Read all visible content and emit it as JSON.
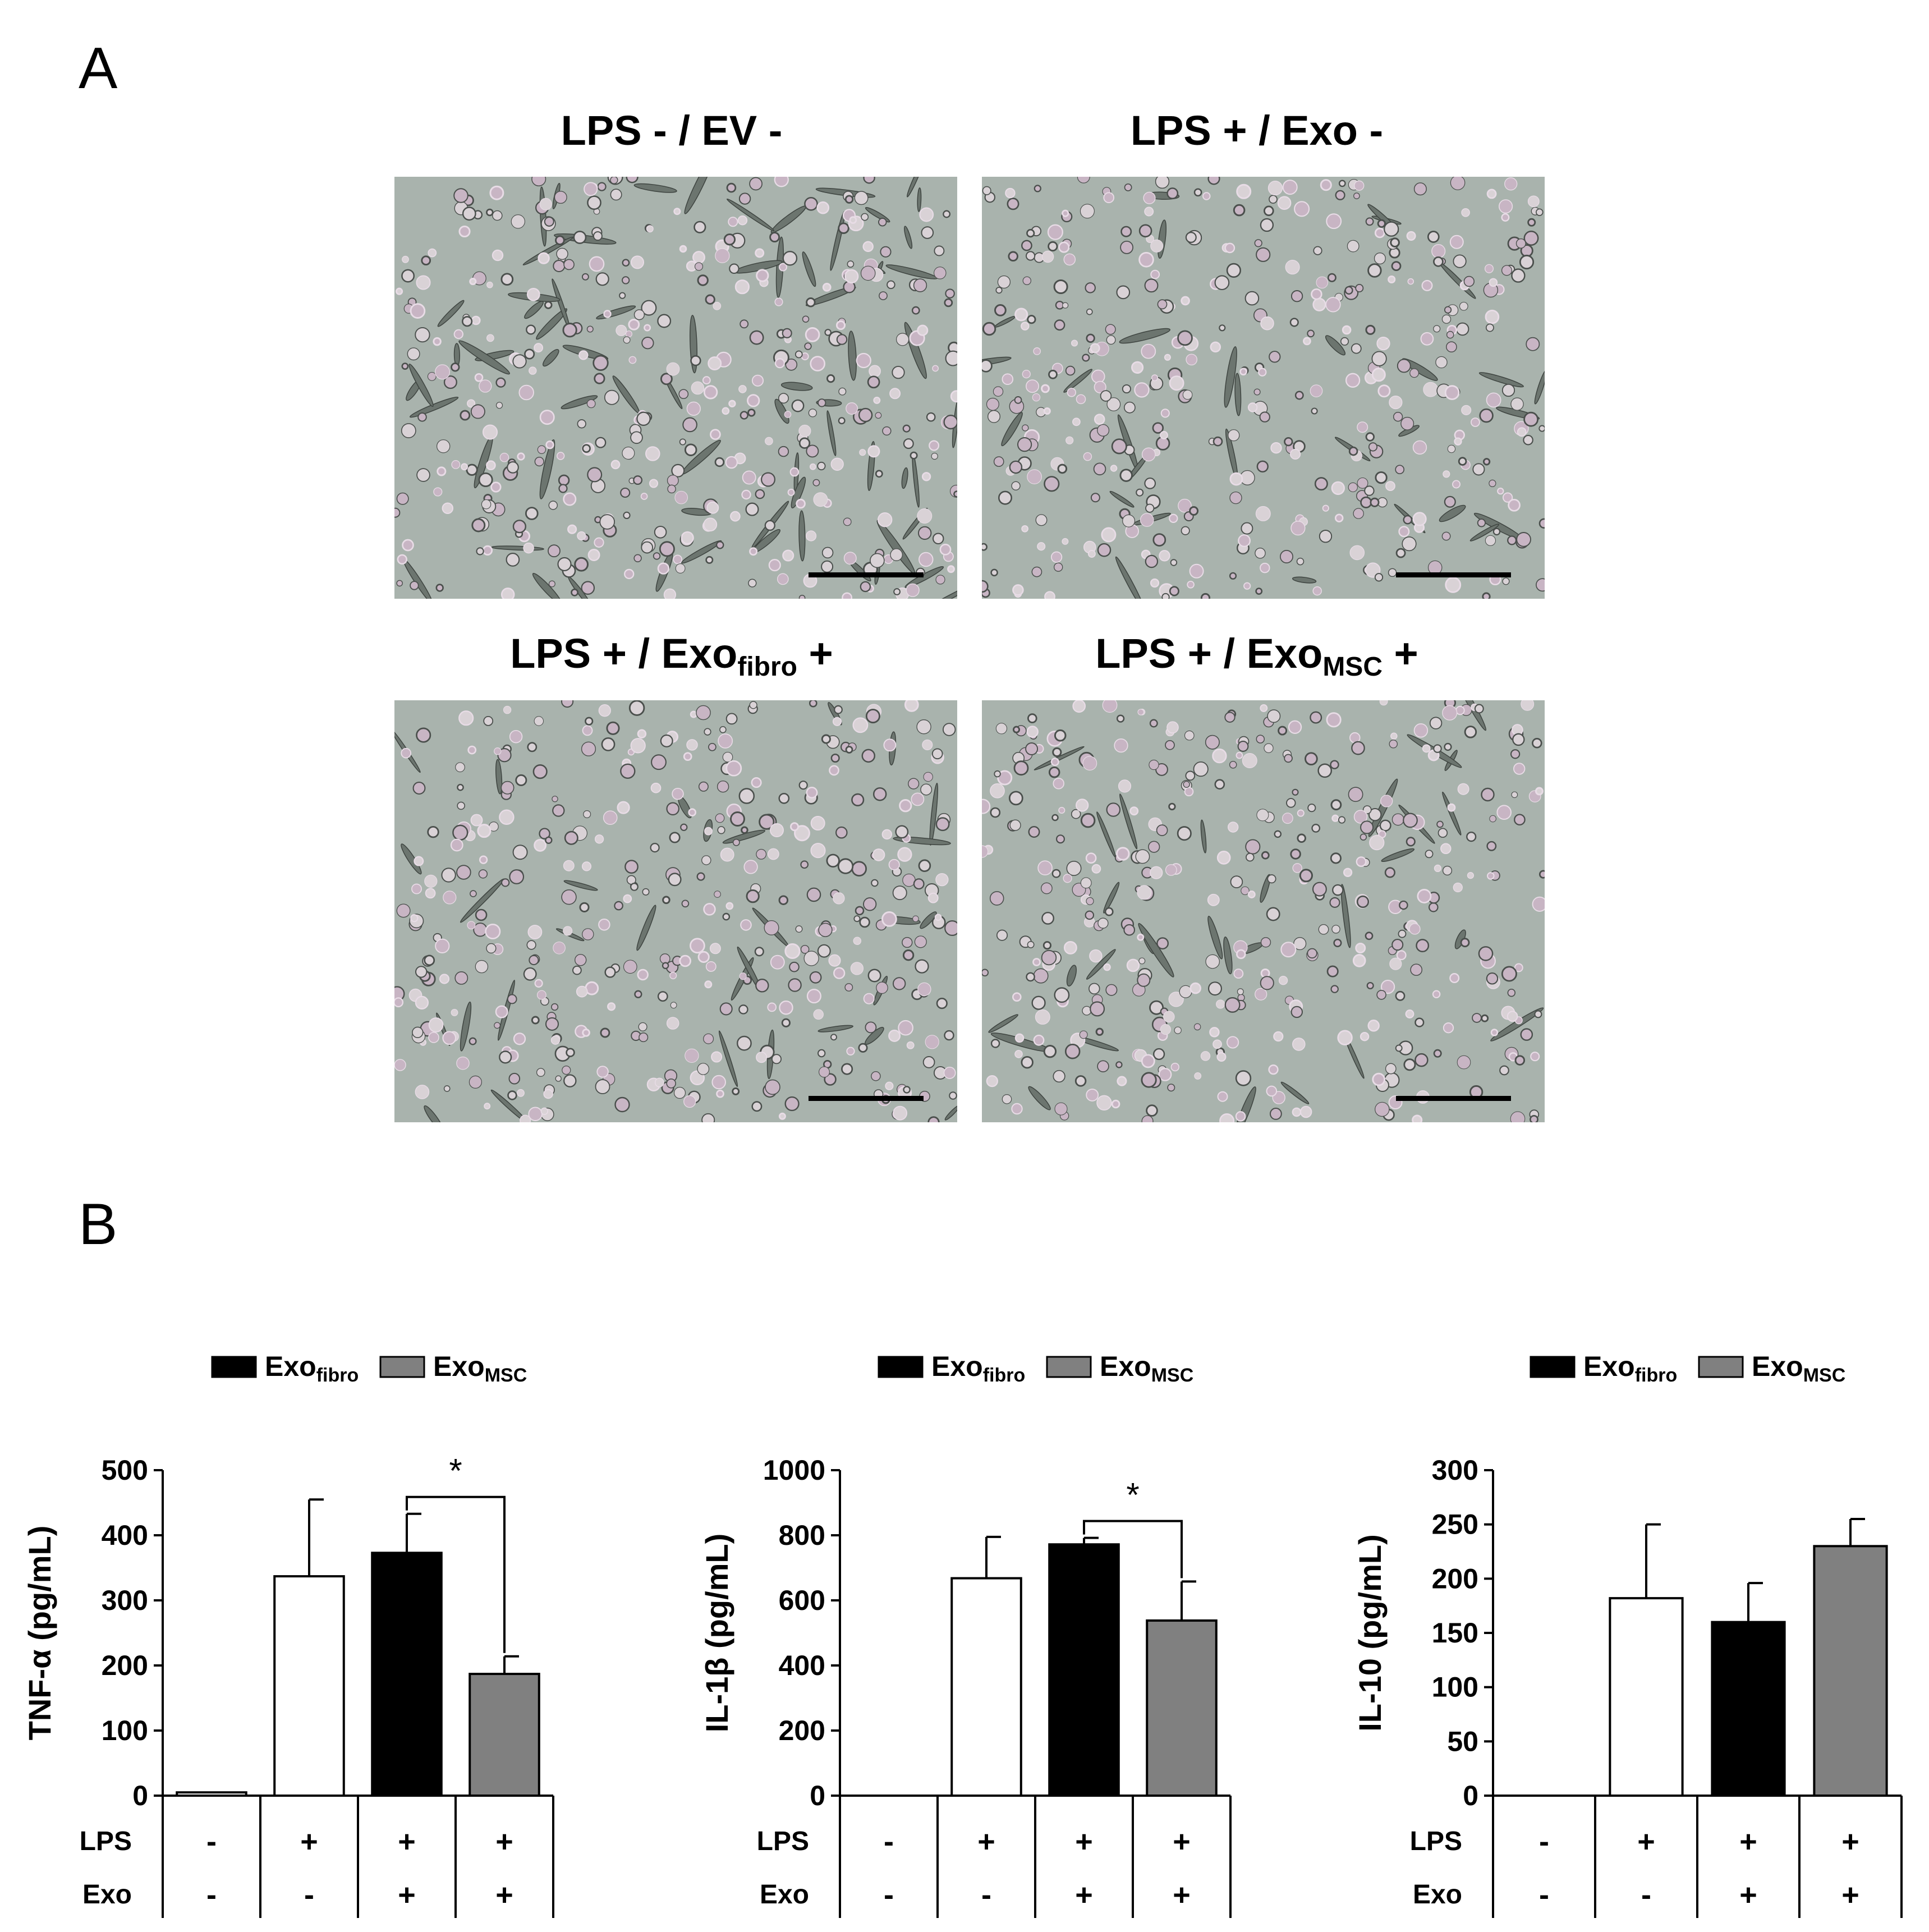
{
  "panel_a": {
    "letter": "A",
    "images": [
      {
        "title": "LPS - / EV -",
        "title_sub": "",
        "title_tail": ""
      },
      {
        "title": "LPS + / Exo -",
        "title_sub": "",
        "title_tail": ""
      },
      {
        "title": "LPS + / Exo",
        "title_sub": "fibro",
        "title_tail": " +"
      },
      {
        "title": "LPS + / Exo",
        "title_sub": "MSC",
        "title_tail": " +"
      }
    ]
  },
  "panel_b": {
    "letter": "B",
    "legend": {
      "fibro_main": "Exo",
      "fibro_sub": "fibro",
      "msc_main": "Exo",
      "msc_sub": "MSC"
    },
    "row_labels": {
      "lps": "LPS",
      "exo": "Exo"
    },
    "lps_row": [
      "-",
      "+",
      "+",
      "+"
    ],
    "exo_row": [
      "-",
      "-",
      "+",
      "+"
    ],
    "significance_mark": "*",
    "colors": {
      "no_exo": "#ffffff",
      "fibro": "#000000",
      "msc": "#808080",
      "outline": "#000000"
    }
  },
  "chart_data": [
    {
      "type": "bar",
      "ylabel": "TNF-α (pg/mL)",
      "ylim": [
        0,
        500
      ],
      "yticks": [
        0,
        100,
        200,
        300,
        400,
        500
      ],
      "categories": [
        "LPS -/Exo -",
        "LPS +/Exo -",
        "LPS +/Exo fibro +",
        "LPS +/Exo MSC +"
      ],
      "values": [
        5,
        337,
        373,
        187
      ],
      "errors": [
        0,
        118,
        60,
        27
      ],
      "significance": {
        "between": [
          2,
          3
        ],
        "label": "*"
      }
    },
    {
      "type": "bar",
      "ylabel": "IL-1β (pg/mL)",
      "ylim": [
        0,
        1000
      ],
      "yticks": [
        0,
        200,
        400,
        600,
        800,
        1000
      ],
      "categories": [
        "LPS -/Exo -",
        "LPS +/Exo -",
        "LPS +/Exo fibro +",
        "LPS +/Exo MSC +"
      ],
      "values": [
        0,
        668,
        772,
        538
      ],
      "errors": [
        0,
        127,
        20,
        120
      ],
      "significance": {
        "between": [
          2,
          3
        ],
        "label": "*"
      }
    },
    {
      "type": "bar",
      "ylabel": "IL-10 (pg/mL)",
      "ylim": [
        0,
        300
      ],
      "yticks": [
        0,
        50,
        100,
        150,
        200,
        250,
        300
      ],
      "categories": [
        "LPS -/Exo -",
        "LPS +/Exo -",
        "LPS +/Exo fibro +",
        "LPS +/Exo MSC +"
      ],
      "values": [
        0,
        182,
        160,
        230
      ],
      "errors": [
        0,
        68,
        36,
        25
      ],
      "significance": null
    }
  ]
}
